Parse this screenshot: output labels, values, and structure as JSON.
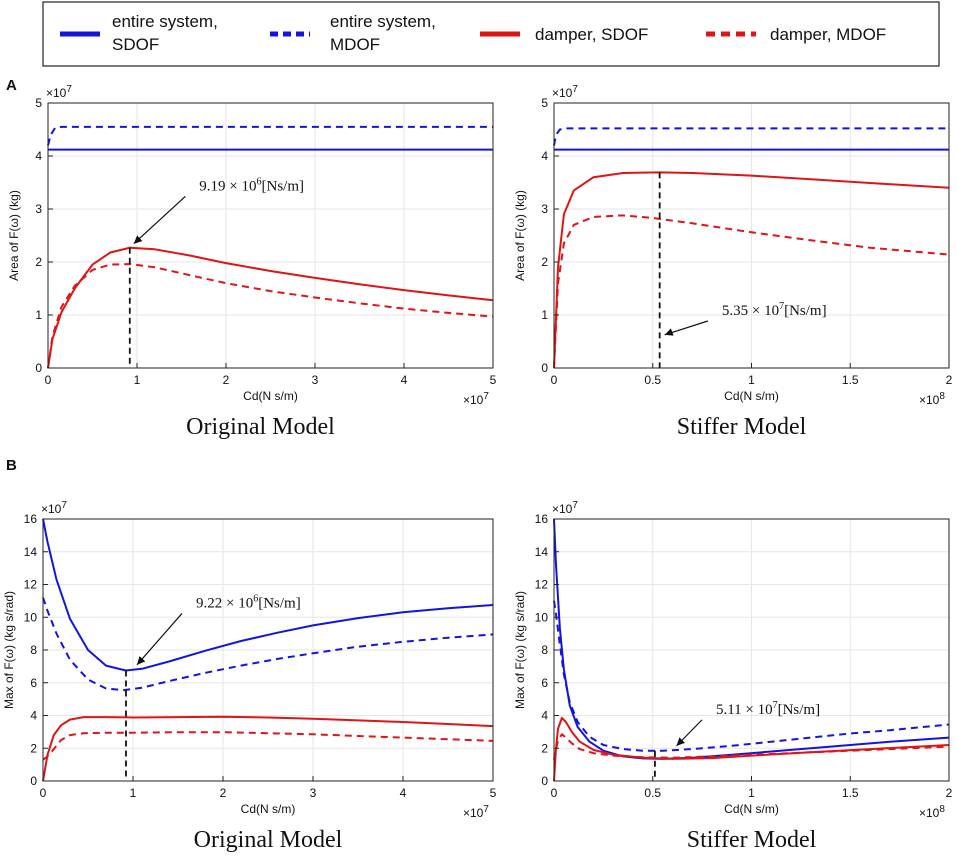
{
  "legend": {
    "items": [
      {
        "label_line1": "entire system,",
        "label_line2": "SDOF",
        "color": "#1414e0",
        "dash": "solid"
      },
      {
        "label_line1": "entire system,",
        "label_line2": "MDOF",
        "color": "#1414e0",
        "dash": "dashed"
      },
      {
        "label_line1": "damper, SDOF",
        "label_line2": "",
        "color": "#e01414",
        "dash": "solid"
      },
      {
        "label_line1": "damper, MDOF",
        "label_line2": "",
        "color": "#e01414",
        "dash": "dashed"
      }
    ]
  },
  "panel_labels": [
    "A",
    "B"
  ],
  "colors": {
    "blue": "#1414e0",
    "red": "#e01414",
    "axis": "#222222",
    "grid": "#e6e6e6"
  },
  "chart_data": [
    {
      "id": "A-original",
      "type": "line",
      "panel": "A",
      "title": "Original Model",
      "xlabel": "Cd(N s/m)",
      "ylabel": "Area of F(ω) (kg)",
      "x_multiplier": "×10",
      "x_multiplier_exp": "7",
      "y_multiplier": "×10",
      "y_multiplier_exp": "7",
      "xlim": [
        0,
        5
      ],
      "ylim": [
        0,
        5
      ],
      "xticks": [
        0,
        1,
        2,
        3,
        4,
        5
      ],
      "yticks": [
        0,
        1,
        2,
        3,
        4,
        5
      ],
      "series": [
        {
          "name": "entire system, SDOF",
          "color": "#1414e0",
          "dash": "solid",
          "x": [
            0,
            0.02,
            0.05,
            1,
            2,
            3,
            4,
            5
          ],
          "y": [
            4.12,
            4.12,
            4.12,
            4.12,
            4.12,
            4.12,
            4.12,
            4.12
          ]
        },
        {
          "name": "entire system, MDOF",
          "color": "#1414e0",
          "dash": "dashed",
          "x": [
            0,
            0.03,
            0.08,
            0.15,
            1,
            2,
            3,
            4,
            5
          ],
          "y": [
            4.2,
            4.4,
            4.53,
            4.55,
            4.55,
            4.55,
            4.55,
            4.55,
            4.55
          ]
        },
        {
          "name": "damper, SDOF",
          "color": "#e01414",
          "dash": "solid",
          "x": [
            0,
            0.05,
            0.15,
            0.3,
            0.5,
            0.7,
            0.92,
            1.2,
            1.6,
            2,
            2.5,
            3,
            3.5,
            4,
            4.5,
            5
          ],
          "y": [
            0,
            0.55,
            1.05,
            1.5,
            1.95,
            2.18,
            2.27,
            2.24,
            2.12,
            1.98,
            1.83,
            1.7,
            1.58,
            1.47,
            1.37,
            1.28
          ]
        },
        {
          "name": "damper, MDOF",
          "color": "#e01414",
          "dash": "dashed",
          "x": [
            0,
            0.05,
            0.15,
            0.3,
            0.5,
            0.7,
            0.92,
            1.2,
            1.6,
            2,
            2.5,
            3,
            3.5,
            4,
            4.5,
            5
          ],
          "y": [
            0,
            0.6,
            1.15,
            1.55,
            1.85,
            1.95,
            1.96,
            1.9,
            1.75,
            1.6,
            1.45,
            1.33,
            1.22,
            1.12,
            1.04,
            0.97
          ]
        }
      ],
      "marker_line": {
        "x": 0.919,
        "y_top": 2.27
      },
      "annotation": {
        "text": "9.19 × 10",
        "exp": "6",
        "unit": "[Ns/m]",
        "point": [
          0.919,
          2.27
        ],
        "text_pos": [
          1.7,
          3.35
        ]
      }
    },
    {
      "id": "A-stiffer",
      "type": "line",
      "panel": "A",
      "title": "Stiffer Model",
      "xlabel": "Cd(N s/m)",
      "ylabel": "Area of F(ω) (kg)",
      "x_multiplier": "×10",
      "x_multiplier_exp": "8",
      "y_multiplier": "×10",
      "y_multiplier_exp": "7",
      "xlim": [
        0,
        2
      ],
      "ylim": [
        0,
        5
      ],
      "xticks": [
        0,
        0.5,
        1,
        1.5,
        2
      ],
      "yticks": [
        0,
        1,
        2,
        3,
        4,
        5
      ],
      "series": [
        {
          "name": "entire system, SDOF",
          "color": "#1414e0",
          "dash": "solid",
          "x": [
            0,
            0.01,
            0.5,
            1,
            1.5,
            2
          ],
          "y": [
            4.12,
            4.12,
            4.12,
            4.12,
            4.12,
            4.12
          ]
        },
        {
          "name": "entire system, MDOF",
          "color": "#1414e0",
          "dash": "dashed",
          "x": [
            0,
            0.01,
            0.03,
            0.06,
            0.5,
            1,
            1.5,
            2
          ],
          "y": [
            4.2,
            4.4,
            4.5,
            4.52,
            4.52,
            4.52,
            4.52,
            4.52
          ]
        },
        {
          "name": "damper, SDOF",
          "color": "#e01414",
          "dash": "solid",
          "x": [
            0,
            0.02,
            0.05,
            0.1,
            0.2,
            0.35,
            0.535,
            0.7,
            1,
            1.3,
            1.6,
            2
          ],
          "y": [
            0,
            1.9,
            2.9,
            3.35,
            3.6,
            3.68,
            3.69,
            3.68,
            3.63,
            3.56,
            3.49,
            3.4
          ]
        },
        {
          "name": "damper, MDOF",
          "color": "#e01414",
          "dash": "dashed",
          "x": [
            0,
            0.02,
            0.05,
            0.1,
            0.2,
            0.35,
            0.5,
            0.7,
            1,
            1.3,
            1.6,
            2
          ],
          "y": [
            0,
            1.6,
            2.35,
            2.7,
            2.85,
            2.88,
            2.83,
            2.73,
            2.56,
            2.41,
            2.27,
            2.14
          ]
        }
      ],
      "marker_line": {
        "x": 0.535,
        "y_top": 3.69
      },
      "annotation": {
        "text": "5.35 × 10",
        "exp": "7",
        "unit": "[Ns/m]",
        "point": [
          0.54,
          0.55
        ],
        "text_pos": [
          0.85,
          1.0
        ]
      }
    },
    {
      "id": "B-original",
      "type": "line",
      "panel": "B",
      "title": "Original Model",
      "xlabel": "Cd(N s/m)",
      "ylabel": "Max of F(ω) (kg s/rad)",
      "x_multiplier": "×10",
      "x_multiplier_exp": "7",
      "y_multiplier": "×10",
      "y_multiplier_exp": "7",
      "xlim": [
        0,
        5
      ],
      "ylim": [
        0,
        16
      ],
      "xticks": [
        0,
        1,
        2,
        3,
        4,
        5
      ],
      "yticks": [
        0,
        2,
        4,
        6,
        8,
        10,
        12,
        14,
        16
      ],
      "series": [
        {
          "name": "entire system, SDOF",
          "color": "#1414e0",
          "dash": "solid",
          "x": [
            0,
            0.05,
            0.15,
            0.3,
            0.5,
            0.7,
            0.92,
            1.1,
            1.4,
            1.8,
            2.2,
            2.6,
            3,
            3.5,
            4,
            4.5,
            5
          ],
          "y": [
            16,
            14.6,
            12.3,
            9.9,
            8.0,
            7.05,
            6.75,
            6.85,
            7.3,
            7.95,
            8.55,
            9.05,
            9.5,
            9.95,
            10.3,
            10.55,
            10.75
          ]
        },
        {
          "name": "entire system, MDOF",
          "color": "#1414e0",
          "dash": "dashed",
          "x": [
            0,
            0.05,
            0.15,
            0.3,
            0.5,
            0.7,
            0.9,
            1.1,
            1.4,
            1.8,
            2.2,
            2.6,
            3,
            3.5,
            4,
            4.5,
            5
          ],
          "y": [
            11.2,
            10.4,
            9.0,
            7.4,
            6.2,
            5.65,
            5.55,
            5.7,
            6.1,
            6.6,
            7.05,
            7.45,
            7.8,
            8.2,
            8.5,
            8.75,
            8.95
          ]
        },
        {
          "name": "damper, SDOF",
          "color": "#e01414",
          "dash": "solid",
          "x": [
            0,
            0.05,
            0.12,
            0.2,
            0.3,
            0.45,
            0.7,
            1,
            1.5,
            2,
            2.5,
            3,
            3.5,
            4,
            4.5,
            5
          ],
          "y": [
            0,
            1.6,
            2.8,
            3.4,
            3.75,
            3.9,
            3.9,
            3.88,
            3.9,
            3.92,
            3.88,
            3.8,
            3.7,
            3.6,
            3.48,
            3.35
          ]
        },
        {
          "name": "damper, MDOF",
          "color": "#e01414",
          "dash": "dashed",
          "x": [
            0,
            0.05,
            0.12,
            0.2,
            0.3,
            0.45,
            0.7,
            1,
            1.5,
            2,
            2.5,
            3,
            3.5,
            4,
            4.5,
            5
          ],
          "y": [
            1.3,
            1.5,
            1.95,
            2.5,
            2.8,
            2.92,
            2.95,
            2.95,
            2.98,
            2.98,
            2.92,
            2.85,
            2.75,
            2.65,
            2.55,
            2.45
          ]
        }
      ],
      "marker_line": {
        "x": 0.922,
        "y_top": 6.75
      },
      "annotation": {
        "text": "9.22 × 10",
        "exp": "6",
        "unit": "[Ns/m]",
        "point": [
          1.0,
          6.85
        ],
        "text_pos": [
          1.7,
          10.6
        ]
      }
    },
    {
      "id": "B-stiffer",
      "type": "line",
      "panel": "B",
      "title": "Stiffer Model",
      "xlabel": "Cd(N s/m)",
      "ylabel": "Max of F(ω) (kg s/rad)",
      "x_multiplier": "×10",
      "x_multiplier_exp": "8",
      "y_multiplier": "×10",
      "y_multiplier_exp": "7",
      "xlim": [
        0,
        2
      ],
      "ylim": [
        0,
        16
      ],
      "xticks": [
        0,
        0.5,
        1,
        1.5,
        2
      ],
      "yticks": [
        0,
        2,
        4,
        6,
        8,
        10,
        12,
        14,
        16
      ],
      "series": [
        {
          "name": "entire system, SDOF",
          "color": "#1414e0",
          "dash": "solid",
          "x": [
            0,
            0.01,
            0.03,
            0.05,
            0.08,
            0.12,
            0.18,
            0.25,
            0.35,
            0.45,
            0.55,
            0.7,
            0.9,
            1.1,
            1.3,
            1.5,
            1.7,
            2
          ],
          "y": [
            16,
            13.2,
            9.3,
            6.8,
            4.6,
            3.3,
            2.4,
            1.85,
            1.5,
            1.38,
            1.35,
            1.42,
            1.6,
            1.8,
            2.0,
            2.2,
            2.4,
            2.65
          ]
        },
        {
          "name": "entire system, MDOF",
          "color": "#1414e0",
          "dash": "dashed",
          "x": [
            0,
            0.01,
            0.03,
            0.05,
            0.08,
            0.12,
            0.18,
            0.25,
            0.35,
            0.45,
            0.55,
            0.7,
            0.9,
            1.1,
            1.3,
            1.5,
            1.7,
            2
          ],
          "y": [
            11.0,
            10.2,
            8.3,
            6.5,
            4.8,
            3.6,
            2.7,
            2.2,
            1.95,
            1.85,
            1.85,
            1.95,
            2.15,
            2.4,
            2.65,
            2.9,
            3.1,
            3.45
          ]
        },
        {
          "name": "damper, SDOF",
          "color": "#e01414",
          "dash": "solid",
          "x": [
            0,
            0.01,
            0.02,
            0.04,
            0.06,
            0.09,
            0.13,
            0.2,
            0.3,
            0.45,
            0.6,
            0.8,
            1,
            1.3,
            1.6,
            2
          ],
          "y": [
            0,
            2.0,
            3.2,
            3.85,
            3.6,
            3.0,
            2.4,
            1.9,
            1.6,
            1.42,
            1.35,
            1.4,
            1.55,
            1.75,
            1.95,
            2.2
          ]
        },
        {
          "name": "damper, MDOF",
          "color": "#e01414",
          "dash": "dashed",
          "x": [
            0,
            0.01,
            0.02,
            0.04,
            0.06,
            0.09,
            0.13,
            0.2,
            0.3,
            0.45,
            0.6,
            0.8,
            1,
            1.3,
            1.6,
            2
          ],
          "y": [
            1.3,
            1.9,
            2.5,
            2.85,
            2.65,
            2.3,
            1.95,
            1.7,
            1.55,
            1.45,
            1.42,
            1.5,
            1.6,
            1.75,
            1.9,
            2.1
          ]
        }
      ],
      "marker_line": {
        "x": 0.511,
        "y_top": 1.85
      },
      "annotation": {
        "text": "5.11 × 10",
        "exp": "7",
        "unit": "[Ns/m]",
        "point": [
          0.6,
          1.9
        ],
        "text_pos": [
          0.82,
          4.1
        ]
      }
    }
  ]
}
